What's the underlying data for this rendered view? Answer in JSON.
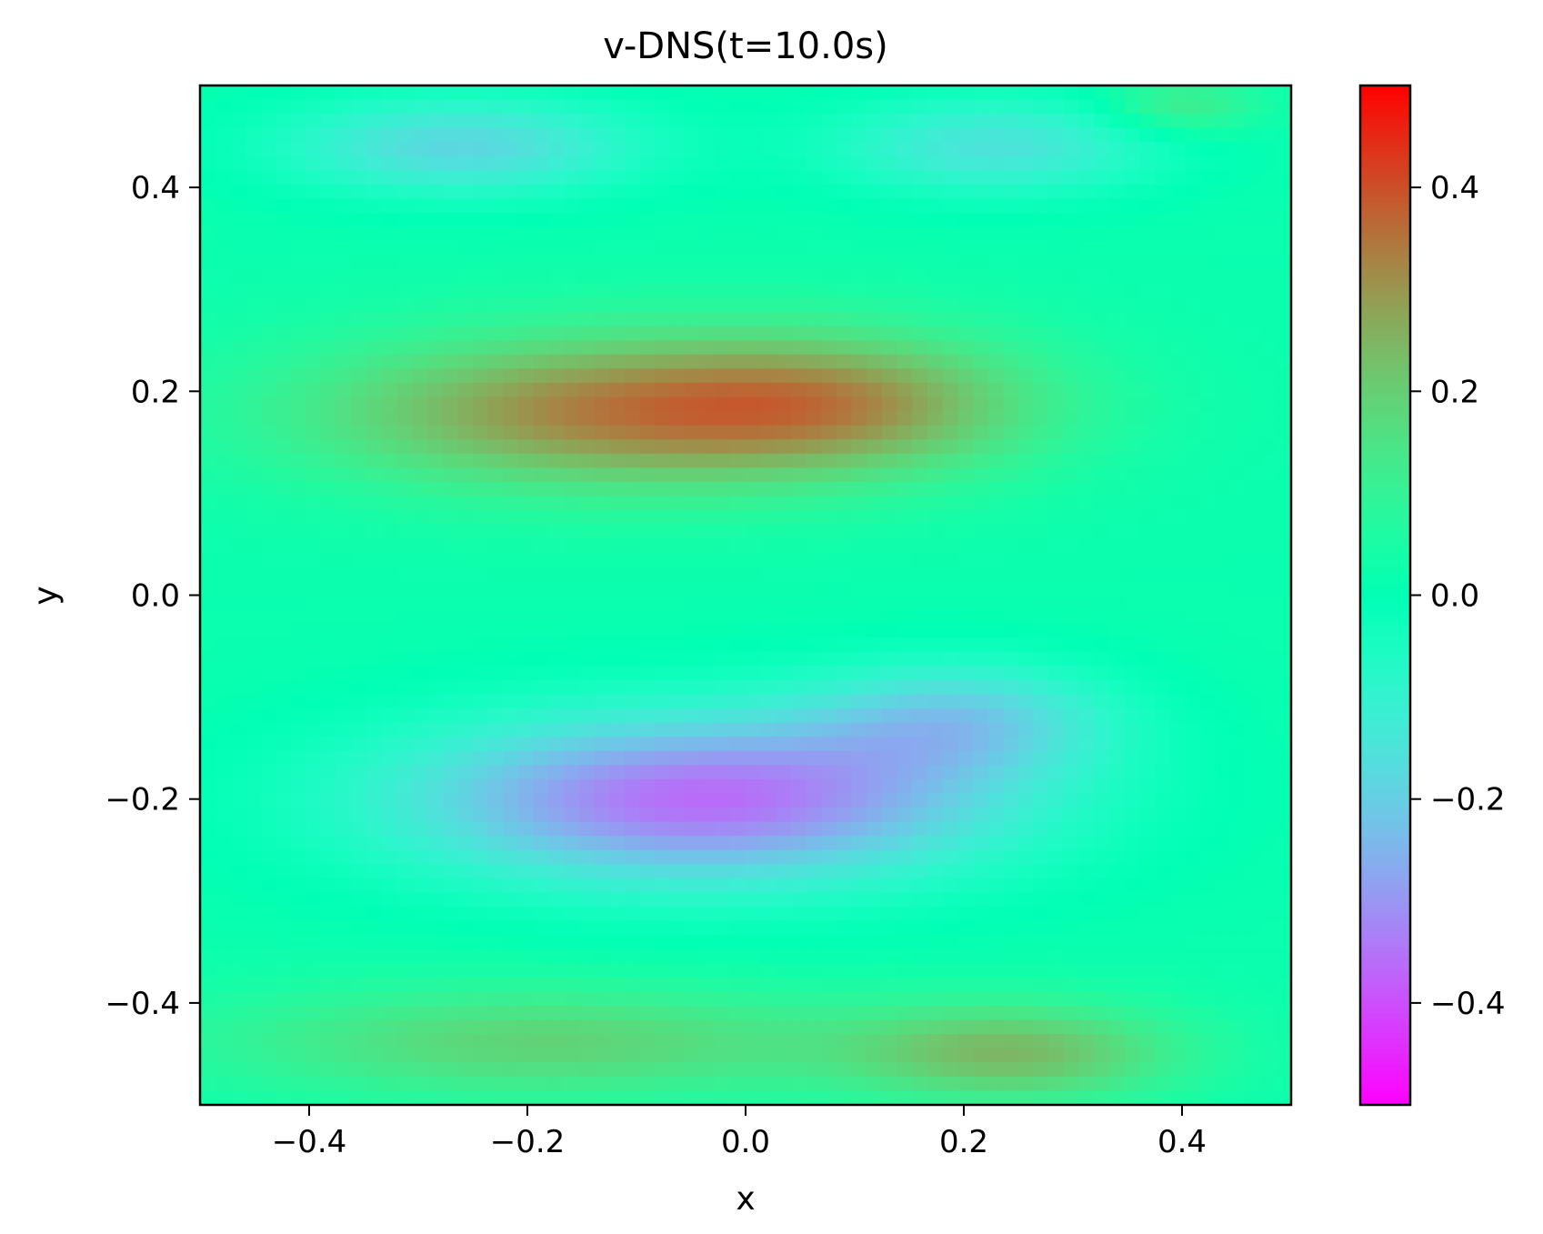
{
  "chart_data": {
    "type": "heatmap",
    "title": "v-DNS(t=10.0s)",
    "xlabel": "x",
    "ylabel": "y",
    "xlim": [
      -0.5,
      0.5
    ],
    "ylim": [
      -0.5,
      0.5
    ],
    "x_ticks": [
      -0.4,
      -0.2,
      0.0,
      0.2,
      0.4
    ],
    "x_tick_labels": [
      "−0.4",
      "−0.2",
      "0.0",
      "0.2",
      "0.4"
    ],
    "y_ticks": [
      -0.4,
      -0.2,
      0.0,
      0.2,
      0.4
    ],
    "y_tick_labels": [
      "−0.4",
      "−0.2",
      "0.0",
      "0.2",
      "0.4"
    ],
    "colormap": "rainbow",
    "grid": false,
    "colorbar": {
      "vmin": -0.5,
      "vmax": 0.5,
      "ticks": [
        -0.4,
        -0.2,
        0.0,
        0.2,
        0.4
      ],
      "tick_labels": [
        "−0.4",
        "−0.2",
        "0.0",
        "0.2",
        "0.4"
      ],
      "placement": "right"
    },
    "features": [
      {
        "x": -0.12,
        "y": 0.18,
        "sx": 0.2,
        "sy": 0.055,
        "amp": 0.3
      },
      {
        "x": 0.1,
        "y": 0.19,
        "sx": 0.13,
        "sy": 0.05,
        "amp": 0.16
      },
      {
        "x": -0.04,
        "y": -0.2,
        "sx": 0.2,
        "sy": 0.06,
        "amp": -0.38
      },
      {
        "x": 0.2,
        "y": -0.12,
        "sx": 0.1,
        "sy": 0.04,
        "amp": -0.18
      },
      {
        "x": -0.26,
        "y": 0.44,
        "sx": 0.12,
        "sy": 0.035,
        "amp": -0.2
      },
      {
        "x": 0.23,
        "y": 0.44,
        "sx": 0.11,
        "sy": 0.035,
        "amp": -0.17
      },
      {
        "x": -0.18,
        "y": -0.44,
        "sx": 0.22,
        "sy": 0.04,
        "amp": 0.17
      },
      {
        "x": 0.25,
        "y": -0.45,
        "sx": 0.11,
        "sy": 0.035,
        "amp": 0.2
      },
      {
        "x": 0.4,
        "y": 0.48,
        "sx": 0.05,
        "sy": 0.02,
        "amp": 0.12
      }
    ]
  }
}
